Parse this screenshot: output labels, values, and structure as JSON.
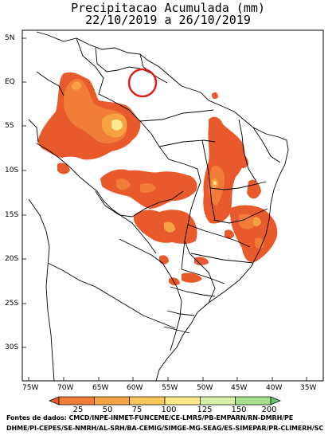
{
  "map": {
    "title_line1": "Precipitacao Acumulada (mm)",
    "title_line2": "22/10/2019 a 26/10/2019",
    "lat_labels": [
      "5N",
      "EQ",
      "5S",
      "10S",
      "15S",
      "20S",
      "25S",
      "30S"
    ],
    "lon_labels": [
      "75W",
      "70W",
      "65W",
      "60W",
      "55W",
      "50W",
      "45W",
      "40W",
      "35W"
    ],
    "legend": {
      "values": [
        "25",
        "50",
        "75",
        "100",
        "125",
        "150",
        "200"
      ],
      "colors": [
        "#e85a2c",
        "#f07c38",
        "#f5a245",
        "#f9c85a",
        "#fde98a",
        "#d7f0a8",
        "#a6e08c",
        "#6cc46a"
      ]
    },
    "source_line1": "Fontes de dados: CMCD/INPE-INMET-FUNCEME/CE-LMRS/PB-EMPARN/RN-DMRH/PE",
    "source_line2": "DHME/PI-CEPES/SE-NMRH/AL-SRH/BA-CEMIG/SIMGE-MG-SEAG/ES-SIMEPAR/PR-CLIMERH/SC",
    "annotation_color": "#e01e1e"
  }
}
